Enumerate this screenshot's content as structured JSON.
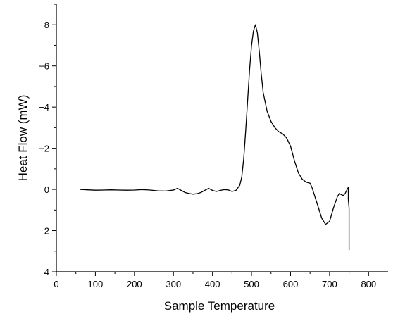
{
  "chart_data": {
    "type": "line",
    "title": "",
    "xlabel": "Sample Temperature",
    "ylabel": "Heat Flow (mW)",
    "xlim": [
      0,
      850
    ],
    "ylim": [
      4,
      -9
    ],
    "y_inverted": true,
    "xticks": [
      0,
      100,
      200,
      300,
      400,
      500,
      600,
      700,
      800
    ],
    "yticks": [
      4,
      2,
      0,
      -2,
      -4,
      -6,
      -8
    ],
    "xtick_labels": [
      "0",
      "100",
      "200",
      "300",
      "400",
      "500",
      "600",
      "700",
      "800"
    ],
    "ytick_labels": [
      "4",
      "2",
      "0",
      "−2",
      "−4",
      "−6",
      "−8"
    ],
    "grid": false,
    "legend": "none",
    "series": [
      {
        "color": "#000000",
        "x": [
          60,
          80,
          100,
          120,
          140,
          160,
          180,
          200,
          220,
          240,
          260,
          280,
          300,
          310,
          320,
          330,
          340,
          350,
          360,
          370,
          380,
          390,
          400,
          410,
          420,
          430,
          440,
          450,
          460,
          470,
          475,
          480,
          485,
          490,
          495,
          500,
          505,
          510,
          515,
          520,
          525,
          530,
          540,
          550,
          560,
          570,
          580,
          590,
          600,
          610,
          620,
          630,
          640,
          650,
          655,
          660,
          670,
          680,
          690,
          700,
          710,
          720,
          725,
          730,
          735,
          740,
          745,
          748,
          748,
          750,
          750
        ],
        "y": [
          0,
          0.02,
          0.04,
          0.03,
          0.02,
          0.03,
          0.04,
          0.03,
          0.01,
          0.03,
          0.07,
          0.08,
          0.03,
          -0.05,
          0.05,
          0.15,
          0.2,
          0.23,
          0.21,
          0.15,
          0.05,
          -0.05,
          0.05,
          0.1,
          0.05,
          0.01,
          0.02,
          0.1,
          0.05,
          -0.2,
          -0.6,
          -1.5,
          -2.8,
          -4.3,
          -5.8,
          -7.0,
          -7.7,
          -8.0,
          -7.6,
          -6.7,
          -5.6,
          -4.7,
          -3.8,
          -3.3,
          -3.0,
          -2.8,
          -2.7,
          -2.5,
          -2.1,
          -1.4,
          -0.8,
          -0.5,
          -0.35,
          -0.3,
          -0.1,
          0.2,
          0.8,
          1.4,
          1.7,
          1.55,
          0.9,
          0.35,
          0.2,
          0.25,
          0.3,
          0.2,
          0.0,
          -0.1,
          0.5,
          0.9,
          2.95
        ]
      }
    ]
  }
}
